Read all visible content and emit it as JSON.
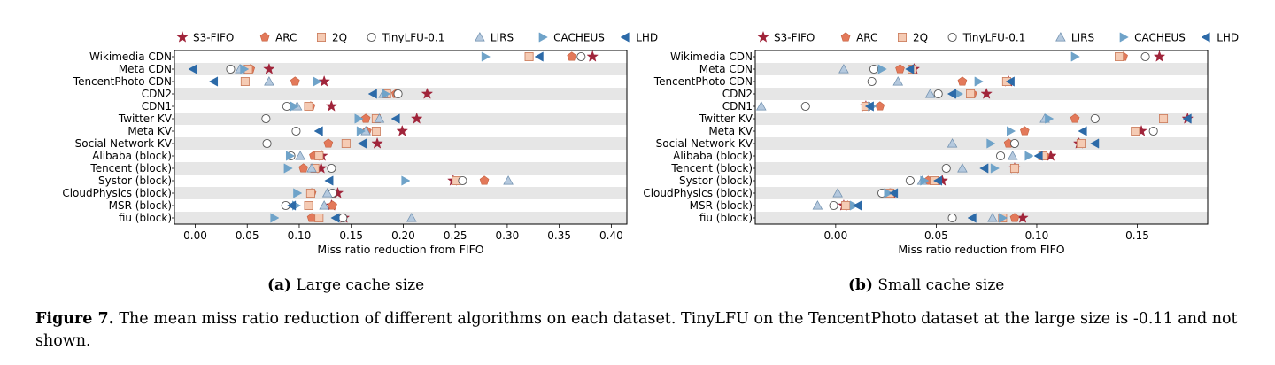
{
  "figure": {
    "subcaption_a_label": "(a)",
    "subcaption_a_text": "Large cache size",
    "subcaption_b_label": "(b)",
    "subcaption_b_text": "Small cache size",
    "caption_label": "Figure 7.",
    "caption_text": "The mean miss ratio reduction of different algorithms on each dataset. TinyLFU on the TencentPhoto dataset at the large size is -0.11 and not shown."
  },
  "legend": [
    {
      "name": "S3-FIFO",
      "marker": "star",
      "color": "#a0243a"
    },
    {
      "name": "ARC",
      "marker": "pentagon",
      "color": "#e3795a"
    },
    {
      "name": "2Q",
      "marker": "square",
      "color": "#f5cbb4"
    },
    {
      "name": "TinyLFU-0.1",
      "marker": "circle",
      "color": "#ffffff"
    },
    {
      "name": "LIRS",
      "marker": "triangle-up",
      "color": "#b5c9de"
    },
    {
      "name": "CACHEUS",
      "marker": "triangle-right",
      "color": "#6fa3c9"
    },
    {
      "name": "LHD",
      "marker": "triangle-left",
      "color": "#2c6aa8"
    }
  ],
  "chart_data": [
    {
      "type": "scatter",
      "subcaption": "(a) Large cache size",
      "xlabel": "Miss ratio reduction from FIFO",
      "xlim": [
        -0.02,
        0.415
      ],
      "xticks": [
        "0.00",
        "0.05",
        "0.10",
        "0.15",
        "0.20",
        "0.25",
        "0.30",
        "0.35",
        "0.40"
      ],
      "grid": "alternating row bands",
      "legend_position": "top",
      "categories": [
        "Wikimedia CDN",
        "Meta CDN",
        "TencentPhoto CDN",
        "CDN2",
        "CDN1",
        "Twitter KV",
        "Meta KV",
        "Social Network KV",
        "Alibaba (block)",
        "Tencent (block)",
        "Systor (block)",
        "CloudPhysics (block)",
        "MSR (block)",
        "fiu (block)"
      ],
      "series": [
        {
          "name": "S3-FIFO",
          "values": [
            0.382,
            0.071,
            0.124,
            0.223,
            0.131,
            0.213,
            0.199,
            0.175,
            0.122,
            0.121,
            0.248,
            0.137,
            0.131,
            0.143
          ]
        },
        {
          "name": "ARC",
          "values": [
            0.362,
            0.053,
            0.096,
            0.193,
            0.111,
            0.164,
            0.165,
            0.128,
            0.114,
            0.104,
            0.278,
            0.112,
            0.132,
            0.112
          ]
        },
        {
          "name": "2Q",
          "values": [
            0.321,
            0.051,
            0.048,
            0.184,
            0.109,
            0.174,
            0.174,
            0.145,
            0.119,
            0.115,
            0.251,
            0.111,
            0.109,
            0.119
          ]
        },
        {
          "name": "TinyLFU-0.1",
          "values": [
            0.371,
            0.034,
            null,
            0.195,
            0.088,
            0.068,
            0.097,
            0.069,
            0.092,
            0.131,
            0.257,
            0.132,
            0.087,
            0.142
          ]
        },
        {
          "name": "LIRS",
          "values": [
            null,
            0.043,
            0.071,
            0.181,
            0.098,
            0.177,
            0.164,
            null,
            0.101,
            0.112,
            0.301,
            0.127,
            0.124,
            0.208
          ]
        },
        {
          "name": "CACHEUS",
          "values": [
            0.279,
            0.047,
            0.117,
            0.183,
            0.095,
            0.157,
            0.159,
            null,
            0.091,
            0.089,
            0.202,
            0.098,
            0.097,
            0.076
          ]
        },
        {
          "name": "LHD",
          "values": [
            0.331,
            -0.002,
            0.018,
            0.171,
            null,
            0.193,
            0.119,
            0.161,
            null,
            null,
            0.129,
            null,
            0.093,
            0.135
          ]
        }
      ]
    },
    {
      "type": "scatter",
      "subcaption": "(b) Small cache size",
      "xlabel": "Miss ratio reduction from FIFO",
      "xlim": [
        -0.04,
        0.185
      ],
      "xticks": [
        "0.00",
        "0.05",
        "0.10",
        "0.15"
      ],
      "grid": "alternating row bands",
      "legend_position": "top",
      "categories": [
        "Wikimedia CDN",
        "Meta CDN",
        "TencentPhoto CDN",
        "CDN2",
        "CDN1",
        "Twitter KV",
        "Meta KV",
        "Social Network KV",
        "Alibaba (block)",
        "Tencent (block)",
        "Systor (block)",
        "CloudPhysics (block)",
        "MSR (block)",
        "fiu (block)"
      ],
      "series": [
        {
          "name": "S3-FIFO",
          "values": [
            0.161,
            0.039,
            0.086,
            0.075,
            0.015,
            0.175,
            0.152,
            0.121,
            0.107,
            0.089,
            0.053,
            0.028,
            0.004,
            0.093
          ]
        },
        {
          "name": "ARC",
          "values": [
            0.143,
            0.032,
            0.063,
            0.068,
            0.022,
            0.119,
            0.094,
            0.086,
            0.104,
            0.089,
            0.046,
            0.027,
            0.006,
            0.089
          ]
        },
        {
          "name": "2Q",
          "values": [
            0.141,
            0.038,
            0.085,
            0.067,
            0.015,
            0.163,
            0.149,
            0.122,
            0.103,
            0.089,
            0.049,
            0.027,
            0.005,
            0.083
          ]
        },
        {
          "name": "TinyLFU-0.1",
          "values": [
            0.154,
            0.019,
            0.018,
            0.051,
            -0.015,
            0.129,
            0.158,
            0.089,
            0.082,
            0.055,
            0.037,
            0.023,
            -0.001,
            0.058
          ]
        },
        {
          "name": "LIRS",
          "values": [
            null,
            0.004,
            0.031,
            0.047,
            -0.037,
            0.104,
            null,
            0.058,
            0.088,
            0.063,
            0.043,
            0.001,
            -0.009,
            0.078
          ]
        },
        {
          "name": "CACHEUS",
          "values": [
            0.119,
            0.023,
            0.071,
            0.061,
            0.018,
            0.106,
            0.087,
            0.077,
            0.096,
            0.079,
            0.044,
            0.026,
            0.009,
            0.083
          ]
        },
        {
          "name": "LHD",
          "values": [
            null,
            0.037,
            0.087,
            0.058,
            0.017,
            0.175,
            0.123,
            0.129,
            0.101,
            0.074,
            0.051,
            0.029,
            0.011,
            0.068
          ]
        }
      ]
    }
  ]
}
